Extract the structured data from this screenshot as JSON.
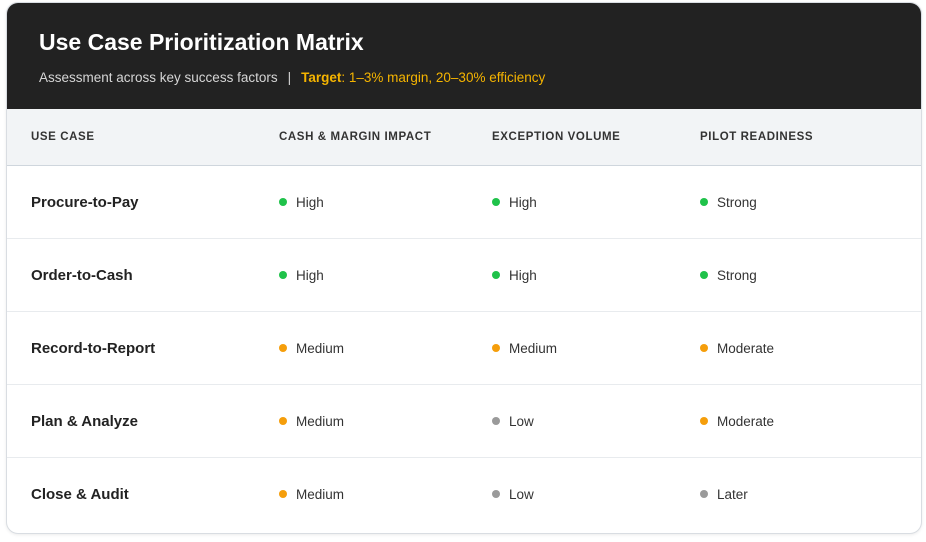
{
  "header": {
    "title": "Use Case Prioritization Matrix",
    "subtitle": "Assessment across key success factors",
    "separator": "|",
    "target_label": "Target",
    "target_text": ": 1–3% margin, 20–30% efficiency"
  },
  "columns": [
    "USE CASE",
    "CASH & MARGIN IMPACT",
    "EXCEPTION VOLUME",
    "PILOT READINESS"
  ],
  "rows": [
    {
      "use_case": "Procure-to-Pay",
      "impact": "High",
      "volume": "High",
      "readiness": "Strong"
    },
    {
      "use_case": "Order-to-Cash",
      "impact": "High",
      "volume": "High",
      "readiness": "Strong"
    },
    {
      "use_case": "Record-to-Report",
      "impact": "Medium",
      "volume": "Medium",
      "readiness": "Moderate"
    },
    {
      "use_case": "Plan & Analyze",
      "impact": "Medium",
      "volume": "Low",
      "readiness": "Moderate"
    },
    {
      "use_case": "Close & Audit",
      "impact": "Medium",
      "volume": "Low",
      "readiness": "Later"
    }
  ],
  "status_colors": {
    "High": "#1fc24a",
    "Strong": "#1fc24a",
    "Medium": "#f59e0b",
    "Moderate": "#f59e0b",
    "Low": "#9a9a9a",
    "Later": "#9a9a9a"
  }
}
